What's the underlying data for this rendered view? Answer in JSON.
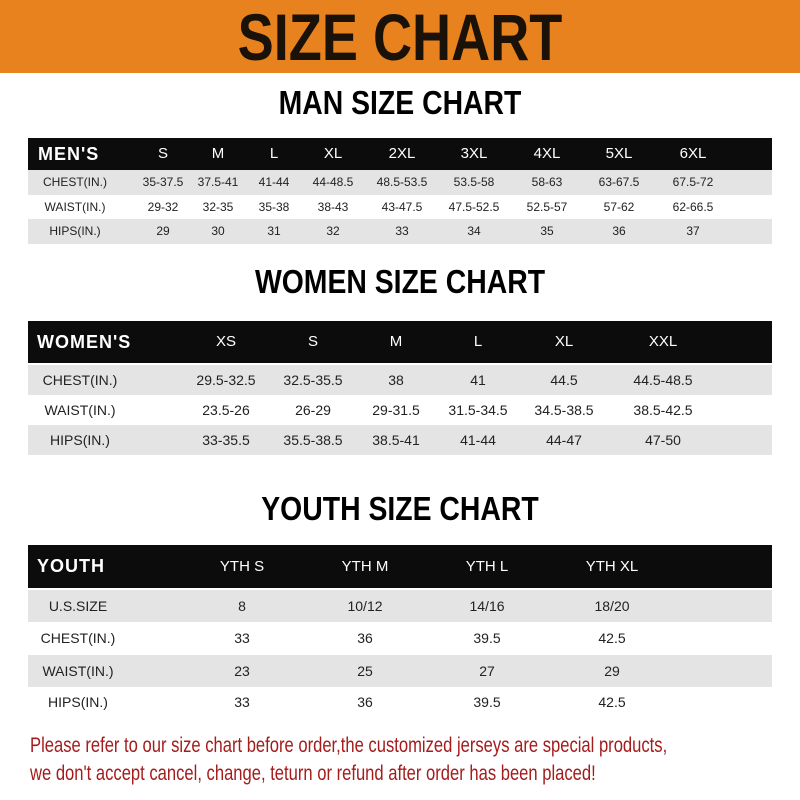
{
  "banner": {
    "title": "SIZE CHART",
    "color": "#e8821e"
  },
  "men": {
    "title": "MAN SIZE CHART",
    "header": [
      "MEN'S",
      "S",
      "M",
      "L",
      "XL",
      "2XL",
      "3XL",
      "4XL",
      "5XL",
      "6XL"
    ],
    "rows": [
      [
        "CHEST(IN.)",
        "35-37.5",
        "37.5-41",
        "41-44",
        "44-48.5",
        "48.5-53.5",
        "53.5-58",
        "58-63",
        "63-67.5",
        "67.5-72"
      ],
      [
        "WAIST(IN.)",
        "29-32",
        "32-35",
        "35-38",
        "38-43",
        "43-47.5",
        "47.5-52.5",
        "52.5-57",
        "57-62",
        "62-66.5"
      ],
      [
        "HIPS(IN.)",
        "29",
        "30",
        "31",
        "32",
        "33",
        "34",
        "35",
        "36",
        "37"
      ]
    ]
  },
  "women": {
    "title": "WOMEN SIZE CHART",
    "header": [
      "WOMEN'S",
      "XS",
      "S",
      "M",
      "L",
      "XL",
      "XXL"
    ],
    "rows": [
      [
        "CHEST(IN.)",
        "29.5-32.5",
        "32.5-35.5",
        "38",
        "41",
        "44.5",
        "44.5-48.5"
      ],
      [
        "WAIST(IN.)",
        "23.5-26",
        "26-29",
        "29-31.5",
        "31.5-34.5",
        "34.5-38.5",
        "38.5-42.5"
      ],
      [
        "HIPS(IN.)",
        "33-35.5",
        "35.5-38.5",
        "38.5-41",
        "41-44",
        "44-47",
        "47-50"
      ]
    ]
  },
  "youth": {
    "title": "YOUTH SIZE CHART",
    "header": [
      "YOUTH",
      "YTH S",
      "YTH M",
      "YTH L",
      "YTH XL"
    ],
    "rows": [
      [
        "U.S.SIZE",
        "8",
        "10/12",
        "14/16",
        "18/20"
      ],
      [
        "CHEST(IN.)",
        "33",
        "36",
        "39.5",
        "42.5"
      ],
      [
        "WAIST(IN.)",
        "23",
        "25",
        "27",
        "29"
      ],
      [
        "HIPS(IN.)",
        "33",
        "36",
        "39.5",
        "42.5"
      ]
    ]
  },
  "footer": {
    "line1": "Please refer to our size chart before order,the customized jerseys are special products,",
    "line2": "we don't accept cancel, change, teturn or refund after order has been placed!",
    "color": "#a51c1c"
  }
}
